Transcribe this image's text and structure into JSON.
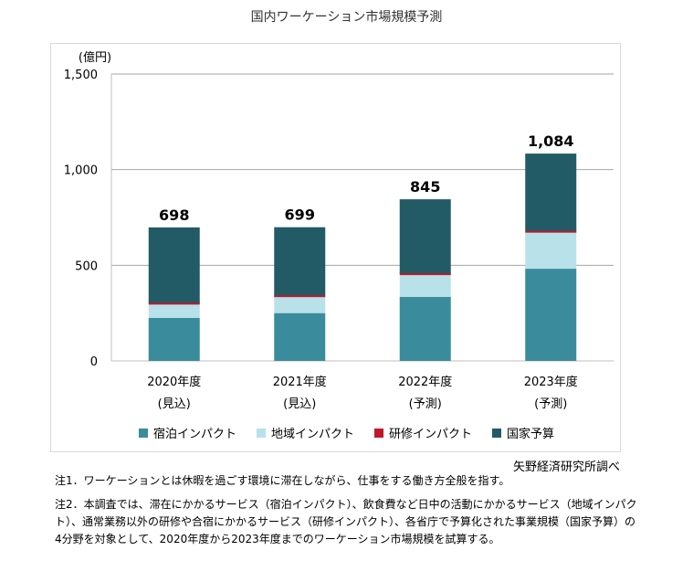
{
  "title": "国内ワーケーション市場規模予測",
  "source": "矢野経済研究所調べ",
  "notes": [
    "注1．ワーケーションとは休暇を過ごす環境に滞在しながら、仕事をする働き方全般を指す。",
    "注2．本調査では、滞在にかかるサービス（宿泊インパクト）、飲食費など日中の活動にかかるサービス（地域インパクト）、通常業務以外の研修や合宿にかかるサービス（研修インパクト）、各省庁で予算化された事業規模（国家予算）の4分野を対象として、2020年度から2023年度までのワーケーション市場規模を試算する。"
  ],
  "chart_data": {
    "type": "bar",
    "stacked": true,
    "ylabel": "(億円)",
    "ylim": [
      0,
      1500
    ],
    "yticks": [
      0,
      500,
      1000,
      1500
    ],
    "ytick_labels": [
      "0",
      "500",
      "1,000",
      "1,500"
    ],
    "grid": true,
    "legend_position": "bottom",
    "categories": [
      "2020年度",
      "2021年度",
      "2022年度",
      "2023年度"
    ],
    "category_sublabels": [
      "(見込)",
      "(見込)",
      "(予測)",
      "(予測)"
    ],
    "totals": [
      698,
      699,
      845,
      1084
    ],
    "total_labels": [
      "698",
      "699",
      "845",
      "1,084"
    ],
    "series": [
      {
        "name": "宿泊インパクト",
        "color": "#3a8c9c",
        "values": [
          225,
          250,
          335,
          482
        ]
      },
      {
        "name": "地域インパクト",
        "color": "#b9e1ea",
        "values": [
          75,
          88,
          117,
          190
        ]
      },
      {
        "name": "研修インパクト",
        "color": "#c0182b",
        "values": [
          4,
          5,
          6,
          8
        ]
      },
      {
        "name": "国家予算",
        "color": "#225b66",
        "values": [
          394,
          356,
          387,
          404
        ]
      }
    ]
  }
}
